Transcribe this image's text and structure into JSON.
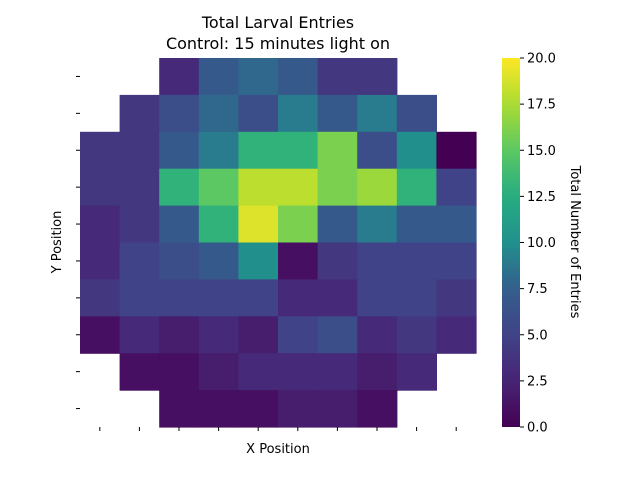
{
  "chart_data": {
    "type": "heatmap",
    "title_line1": "Total Larval Entries",
    "title_line2": "Control: 15 minutes light on",
    "xlabel": "X Position",
    "ylabel": "Y Position",
    "colorbar_label": "Total Number of Entries",
    "colormap": "viridis",
    "vmin": 0,
    "vmax": 20,
    "colorbar_ticks": [
      "0.0",
      "2.5",
      "5.0",
      "7.5",
      "10.0",
      "12.5",
      "15.0",
      "17.5",
      "20.0"
    ],
    "x_tick_count": 10,
    "y_tick_count": 10,
    "x_tick_labels": [
      "",
      "",
      "",
      "",
      "",
      "",
      "",
      "",
      "",
      ""
    ],
    "y_tick_labels": [
      "",
      "",
      "",
      "",
      "",
      "",
      "",
      "",
      "",
      ""
    ],
    "grid": [
      [
        null,
        null,
        3,
        7,
        8,
        7,
        4,
        4,
        null,
        null
      ],
      [
        null,
        4,
        6,
        8,
        6,
        9,
        7,
        9,
        6,
        null
      ],
      [
        4,
        4,
        7,
        9,
        13,
        13,
        16,
        6,
        10,
        0
      ],
      [
        4,
        4,
        13,
        15,
        18,
        18,
        16,
        17,
        13,
        5
      ],
      [
        3,
        4,
        7,
        13,
        19,
        16,
        7,
        9,
        7,
        7
      ],
      [
        3,
        5,
        6,
        7,
        10,
        1,
        4,
        5,
        5,
        5
      ],
      [
        4,
        5,
        5,
        5,
        5,
        3,
        3,
        5,
        5,
        4
      ],
      [
        1,
        3,
        2,
        3,
        2,
        5,
        6,
        3,
        4,
        3
      ],
      [
        null,
        1,
        1,
        2,
        3,
        3,
        3,
        2,
        3,
        null
      ],
      [
        null,
        null,
        1,
        1,
        1,
        2,
        2,
        1,
        null,
        null
      ]
    ]
  }
}
